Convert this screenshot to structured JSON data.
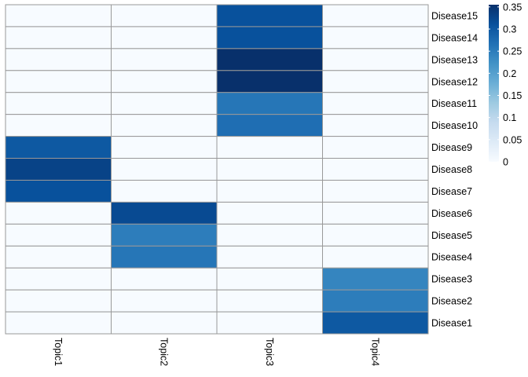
{
  "chart_data": {
    "type": "heatmap",
    "columns": [
      "Topic1",
      "Topic2",
      "Topic3",
      "Topic4"
    ],
    "rows": [
      "Disease15",
      "Disease14",
      "Disease13",
      "Disease12",
      "Disease11",
      "Disease10",
      "Disease9",
      "Disease8",
      "Disease7",
      "Disease6",
      "Disease5",
      "Disease4",
      "Disease3",
      "Disease2",
      "Disease1"
    ],
    "values": [
      [
        0,
        0,
        0.31,
        0
      ],
      [
        0,
        0,
        0.31,
        0
      ],
      [
        0,
        0,
        0.355,
        0
      ],
      [
        0,
        0,
        0.355,
        0
      ],
      [
        0,
        0,
        0.26,
        0
      ],
      [
        0,
        0,
        0.27,
        0
      ],
      [
        0.3,
        0,
        0,
        0
      ],
      [
        0.33,
        0,
        0,
        0
      ],
      [
        0.31,
        0,
        0,
        0
      ],
      [
        0,
        0.32,
        0,
        0
      ],
      [
        0,
        0.25,
        0,
        0
      ],
      [
        0,
        0.26,
        0,
        0
      ],
      [
        0,
        0,
        0,
        0.24
      ],
      [
        0,
        0,
        0,
        0.25
      ],
      [
        0,
        0,
        0,
        0.3
      ]
    ],
    "color_scale": {
      "min": 0,
      "max": 0.355,
      "colors": [
        "#f7fbff",
        "#deebf7",
        "#c6dbef",
        "#9ecae1",
        "#6baed6",
        "#4292c6",
        "#2171b5",
        "#08519c",
        "#08306b"
      ]
    },
    "legend": {
      "ticks": [
        0,
        0.05,
        0.1,
        0.15,
        0.2,
        0.25,
        0.3,
        0.35
      ],
      "tick_labels": [
        "0",
        "0.05",
        "0.1",
        "0.15",
        "0.2",
        "0.25",
        "0.3",
        "0.35"
      ]
    },
    "grid_color": "#999999"
  }
}
